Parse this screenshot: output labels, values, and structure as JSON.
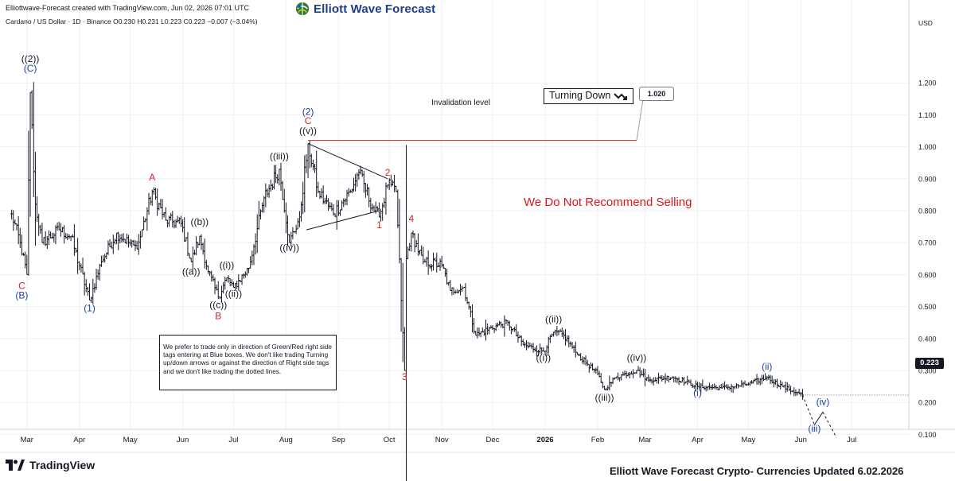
{
  "header": {
    "credit": "Elliottwave-Forecast created with TradingView.com, Jun 02, 2026 07:01 UTC",
    "symbol_line": "Cardano / US Dollar · 1D · Binance  O0.230  H0.231  L0.223  C0.223  −0.007 (−3.04%)",
    "brand": "Elliott Wave Forecast"
  },
  "footer": {
    "tradingview": "TradingView",
    "note": "Elliott Wave Forecast Crypto- Currencies Updated 6.02.2026"
  },
  "annotations": {
    "note_box": "We prefer to trade only in direction of Green/Red right side tags entering at Blue boxes. We don't like trading Turning up/down arrows or against the direction of Right side tags and we don't like trading the dotted lines.",
    "turning_down": "Turning Down",
    "invalidation_label": "Invalidation level",
    "invalidation_price": "1.020",
    "recommend": "We Do Not Recommend Selling",
    "current_price": "0.223"
  },
  "colors": {
    "up": "#131722",
    "label_black": "#131722",
    "label_blue": "#1a3fa3",
    "label_red": "#d5222a",
    "invalidation_line": "#e53935",
    "grid": "#eef0f3"
  },
  "chart_data": {
    "type": "ohlc",
    "title": "",
    "xlabel": "",
    "ylabel": "USD",
    "ylim": [
      0.0,
      1.3
    ],
    "y_ticks": [
      "0.100",
      "0.200",
      "0.300",
      "0.400",
      "0.500",
      "0.600",
      "0.700",
      "0.800",
      "0.900",
      "1.000",
      "1.100",
      "1.200"
    ],
    "x_ticks": [
      "Mar",
      "Apr",
      "May",
      "Jun",
      "Jul",
      "Aug",
      "Sep",
      "Oct",
      "Nov",
      "Dec",
      "2026",
      "Feb",
      "Mar",
      "Apr",
      "May",
      "Jun",
      "Jul"
    ],
    "x_tick_dates": [
      "2025-03-01",
      "2025-04-01",
      "2025-05-01",
      "2025-06-01",
      "2025-07-01",
      "2025-08-01",
      "2025-09-01",
      "2025-10-01",
      "2025-11-01",
      "2025-12-01",
      "2026-01-01",
      "2026-02-01",
      "2026-03-01",
      "2026-04-01",
      "2026-05-01",
      "2026-06-01",
      "2026-07-01"
    ],
    "price_path": [
      {
        "date": "2025-02-20",
        "price": 0.79
      },
      {
        "date": "2025-02-25",
        "price": 0.7
      },
      {
        "date": "2025-03-01",
        "price": 0.6
      },
      {
        "date": "2025-03-03",
        "price": 1.17
      },
      {
        "date": "2025-03-06",
        "price": 0.82
      },
      {
        "date": "2025-03-10",
        "price": 0.7
      },
      {
        "date": "2025-03-20",
        "price": 0.74
      },
      {
        "date": "2025-03-27",
        "price": 0.72
      },
      {
        "date": "2025-04-07",
        "price": 0.52
      },
      {
        "date": "2025-04-14",
        "price": 0.64
      },
      {
        "date": "2025-04-23",
        "price": 0.73
      },
      {
        "date": "2025-05-05",
        "price": 0.68
      },
      {
        "date": "2025-05-14",
        "price": 0.86
      },
      {
        "date": "2025-05-22",
        "price": 0.77
      },
      {
        "date": "2025-05-31",
        "price": 0.76
      },
      {
        "date": "2025-06-06",
        "price": 0.64
      },
      {
        "date": "2025-06-11",
        "price": 0.72
      },
      {
        "date": "2025-06-16",
        "price": 0.61
      },
      {
        "date": "2025-06-22",
        "price": 0.53
      },
      {
        "date": "2025-06-27",
        "price": 0.59
      },
      {
        "date": "2025-07-01",
        "price": 0.56
      },
      {
        "date": "2025-07-10",
        "price": 0.62
      },
      {
        "date": "2025-07-19",
        "price": 0.84
      },
      {
        "date": "2025-07-28",
        "price": 0.93
      },
      {
        "date": "2025-08-03",
        "price": 0.7
      },
      {
        "date": "2025-08-09",
        "price": 0.78
      },
      {
        "date": "2025-08-14",
        "price": 1.01
      },
      {
        "date": "2025-08-20",
        "price": 0.86
      },
      {
        "date": "2025-08-29",
        "price": 0.79
      },
      {
        "date": "2025-09-08",
        "price": 0.86
      },
      {
        "date": "2025-09-13",
        "price": 0.92
      },
      {
        "date": "2025-09-22",
        "price": 0.8
      },
      {
        "date": "2025-09-25",
        "price": 0.78
      },
      {
        "date": "2025-09-30",
        "price": 0.88
      },
      {
        "date": "2025-10-05",
        "price": 0.86
      },
      {
        "date": "2025-10-10",
        "price": 0.3
      },
      {
        "date": "2025-10-11",
        "price": 0.65
      },
      {
        "date": "2025-10-14",
        "price": 0.73
      },
      {
        "date": "2025-10-21",
        "price": 0.64
      },
      {
        "date": "2025-11-01",
        "price": 0.63
      },
      {
        "date": "2025-11-06",
        "price": 0.55
      },
      {
        "date": "2025-11-14",
        "price": 0.56
      },
      {
        "date": "2025-11-21",
        "price": 0.41
      },
      {
        "date": "2025-12-03",
        "price": 0.44
      },
      {
        "date": "2025-12-10",
        "price": 0.45
      },
      {
        "date": "2025-12-19",
        "price": 0.38
      },
      {
        "date": "2025-12-31",
        "price": 0.36
      },
      {
        "date": "2026-01-06",
        "price": 0.42
      },
      {
        "date": "2026-01-12",
        "price": 0.41
      },
      {
        "date": "2026-01-20",
        "price": 0.35
      },
      {
        "date": "2026-02-01",
        "price": 0.29
      },
      {
        "date": "2026-02-05",
        "price": 0.24
      },
      {
        "date": "2026-02-12",
        "price": 0.28
      },
      {
        "date": "2026-02-24",
        "price": 0.3
      },
      {
        "date": "2026-03-03",
        "price": 0.27
      },
      {
        "date": "2026-03-17",
        "price": 0.28
      },
      {
        "date": "2026-04-01",
        "price": 0.25
      },
      {
        "date": "2026-04-15",
        "price": 0.245
      },
      {
        "date": "2026-04-29",
        "price": 0.255
      },
      {
        "date": "2026-05-12",
        "price": 0.278
      },
      {
        "date": "2026-05-21",
        "price": 0.25
      },
      {
        "date": "2026-06-02",
        "price": 0.223
      }
    ],
    "projection_solid": [
      {
        "date": "2026-06-09",
        "price": 0.13
      },
      {
        "date": "2026-06-14",
        "price": 0.17
      }
    ],
    "projection_dotted": [
      {
        "from": {
          "date": "2026-06-02",
          "price": 0.223
        },
        "to": {
          "date": "2026-06-09",
          "price": 0.13
        }
      },
      {
        "from": {
          "date": "2026-06-14",
          "price": 0.17
        },
        "to": {
          "date": "2026-06-22",
          "price": 0.09
        }
      }
    ],
    "triangle_lines": [
      {
        "from": {
          "date": "2025-08-14",
          "price": 1.01
        },
        "to": {
          "date": "2025-09-30",
          "price": 0.9
        }
      },
      {
        "from": {
          "date": "2025-08-13",
          "price": 0.74
        },
        "to": {
          "date": "2025-09-25",
          "price": 0.8
        }
      }
    ],
    "invalidation_level": {
      "price": 1.02,
      "from": "2025-08-14",
      "to": "2025-12-31"
    },
    "wave_labels": [
      {
        "text": "((2))",
        "date": "2025-03-03",
        "price": 1.265,
        "color": "black"
      },
      {
        "text": "(C)",
        "date": "2025-03-03",
        "price": 1.235,
        "color": "blue"
      },
      {
        "text": "C",
        "date": "2025-02-26",
        "price": 0.555,
        "color": "red"
      },
      {
        "text": "(B)",
        "date": "2025-02-26",
        "price": 0.525,
        "color": "blue"
      },
      {
        "text": "(1)",
        "date": "2025-04-07",
        "price": 0.485,
        "color": "blue"
      },
      {
        "text": "A",
        "date": "2025-05-14",
        "price": 0.895,
        "color": "red"
      },
      {
        "text": "((b))",
        "date": "2025-06-11",
        "price": 0.755,
        "color": "black"
      },
      {
        "text": "((a))",
        "date": "2025-06-06",
        "price": 0.6,
        "color": "black"
      },
      {
        "text": "((i))",
        "date": "2025-06-27",
        "price": 0.62,
        "color": "black"
      },
      {
        "text": "((ii))",
        "date": "2025-07-01",
        "price": 0.53,
        "color": "black"
      },
      {
        "text": "((c))",
        "date": "2025-06-22",
        "price": 0.495,
        "color": "black"
      },
      {
        "text": "B",
        "date": "2025-06-22",
        "price": 0.46,
        "color": "red"
      },
      {
        "text": "((iii))",
        "date": "2025-07-28",
        "price": 0.96,
        "color": "black"
      },
      {
        "text": "((iv))",
        "date": "2025-08-03",
        "price": 0.675,
        "color": "black"
      },
      {
        "text": "(2)",
        "date": "2025-08-14",
        "price": 1.1,
        "color": "blue"
      },
      {
        "text": "C",
        "date": "2025-08-14",
        "price": 1.071,
        "color": "red"
      },
      {
        "text": "((v))",
        "date": "2025-08-14",
        "price": 1.04,
        "color": "black"
      },
      {
        "text": "1",
        "date": "2025-09-25",
        "price": 0.745,
        "color": "red"
      },
      {
        "text": "2",
        "date": "2025-09-30",
        "price": 0.91,
        "color": "red"
      },
      {
        "text": "4",
        "date": "2025-10-14",
        "price": 0.765,
        "color": "red"
      },
      {
        "text": "3",
        "date": "2025-10-10",
        "price": 0.27,
        "color": "red"
      },
      {
        "text": "((ii))",
        "date": "2026-01-06",
        "price": 0.45,
        "color": "black"
      },
      {
        "text": "((i))",
        "date": "2025-12-31",
        "price": 0.33,
        "color": "black"
      },
      {
        "text": "((iv))",
        "date": "2026-02-24",
        "price": 0.33,
        "color": "black"
      },
      {
        "text": "((iii))",
        "date": "2026-02-05",
        "price": 0.205,
        "color": "black"
      },
      {
        "text": "(i)",
        "date": "2026-04-01",
        "price": 0.22,
        "color": "blue"
      },
      {
        "text": "(ii)",
        "date": "2026-05-12",
        "price": 0.303,
        "color": "blue"
      },
      {
        "text": "(iv)",
        "date": "2026-06-14",
        "price": 0.192,
        "color": "blue"
      },
      {
        "text": "(iii)",
        "date": "2026-06-09",
        "price": 0.108,
        "color": "blue"
      }
    ]
  }
}
